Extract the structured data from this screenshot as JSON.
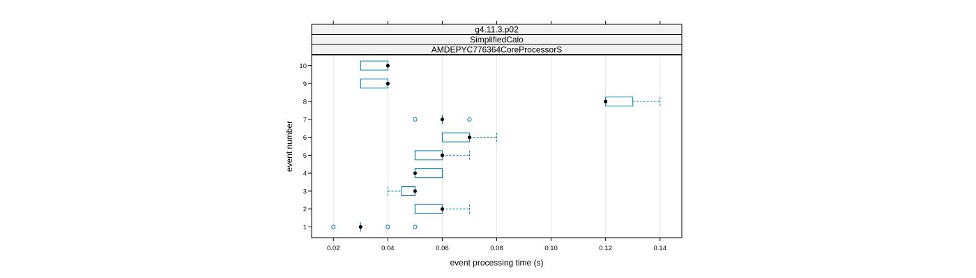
{
  "chart_data": {
    "type": "boxplot",
    "orientation": "horizontal",
    "strips": [
      "g4.11.3.p02",
      "SimplifiedCalo",
      "AMDEPYC776364CoreProcessorS"
    ],
    "xlabel": "event processing time (s)",
    "ylabel": "event number",
    "xlim": [
      0.012,
      0.148
    ],
    "x_ticks": [
      0.02,
      0.04,
      0.06,
      0.08,
      0.1,
      0.12,
      0.14
    ],
    "x_tick_labels": [
      "0.02",
      "0.04",
      "0.06",
      "0.08",
      "0.10",
      "0.12",
      "0.14"
    ],
    "ylim": [
      0.4,
      10.6
    ],
    "y_ticks": [
      1,
      2,
      3,
      4,
      5,
      6,
      7,
      8,
      9,
      10
    ],
    "y_tick_labels": [
      "1",
      "2",
      "3",
      "4",
      "5",
      "6",
      "7",
      "8",
      "9",
      "10"
    ],
    "grid": true,
    "colors": {
      "box": "#0080b0",
      "median": "#000000",
      "grid": "#e6e6e6",
      "strip_bg": "#f2f2f2"
    },
    "boxes": [
      {
        "event": 1,
        "whisker_low": 0.03,
        "q1": 0.03,
        "median": 0.03,
        "q3": 0.03,
        "whisker_high": 0.03,
        "outliers": [
          0.02,
          0.04,
          0.05
        ]
      },
      {
        "event": 2,
        "whisker_low": 0.05,
        "q1": 0.05,
        "median": 0.06,
        "q3": 0.06,
        "whisker_high": 0.07,
        "outliers": []
      },
      {
        "event": 3,
        "whisker_low": 0.04,
        "q1": 0.045,
        "median": 0.05,
        "q3": 0.05,
        "whisker_high": 0.05,
        "outliers": []
      },
      {
        "event": 4,
        "whisker_low": 0.05,
        "q1": 0.05,
        "median": 0.05,
        "q3": 0.06,
        "whisker_high": 0.06,
        "outliers": []
      },
      {
        "event": 5,
        "whisker_low": 0.05,
        "q1": 0.05,
        "median": 0.06,
        "q3": 0.06,
        "whisker_high": 0.07,
        "outliers": []
      },
      {
        "event": 6,
        "whisker_low": 0.06,
        "q1": 0.06,
        "median": 0.07,
        "q3": 0.07,
        "whisker_high": 0.08,
        "outliers": []
      },
      {
        "event": 7,
        "whisker_low": 0.06,
        "q1": 0.06,
        "median": 0.06,
        "q3": 0.06,
        "whisker_high": 0.06,
        "outliers": [
          0.05,
          0.07
        ]
      },
      {
        "event": 8,
        "whisker_low": 0.12,
        "q1": 0.12,
        "median": 0.12,
        "q3": 0.13,
        "whisker_high": 0.14,
        "outliers": []
      },
      {
        "event": 9,
        "whisker_low": 0.03,
        "q1": 0.03,
        "median": 0.04,
        "q3": 0.04,
        "whisker_high": 0.04,
        "outliers": []
      },
      {
        "event": 10,
        "whisker_low": 0.03,
        "q1": 0.03,
        "median": 0.04,
        "q3": 0.04,
        "whisker_high": 0.04,
        "outliers": []
      }
    ]
  }
}
